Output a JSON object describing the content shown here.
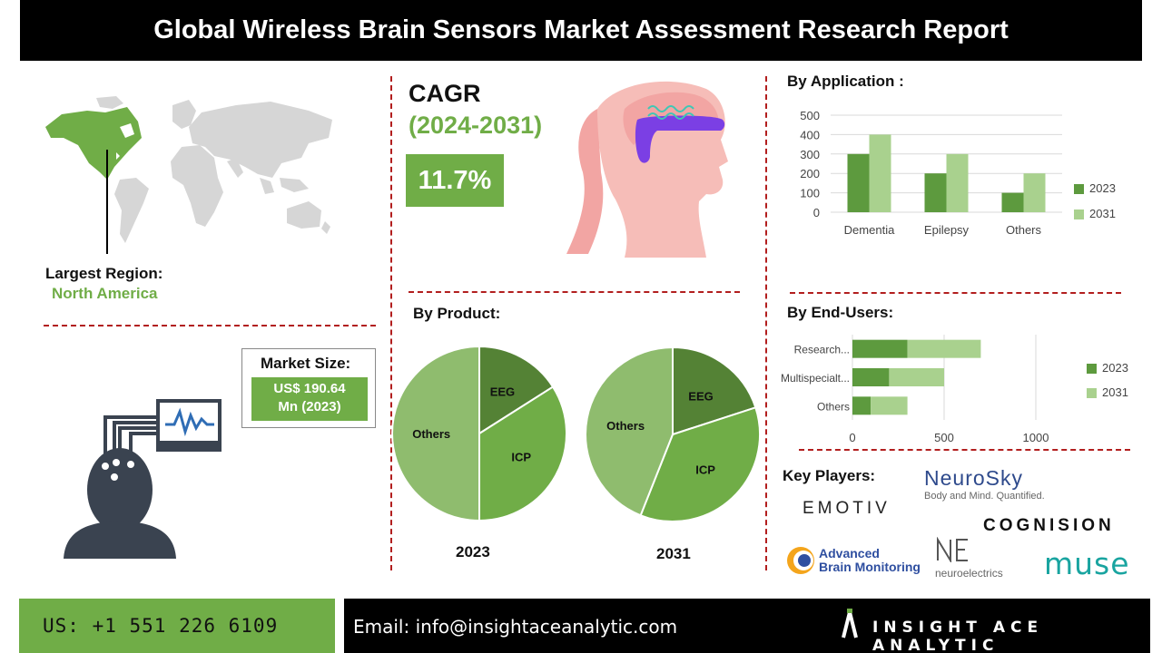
{
  "title": "Global Wireless Brain Sensors Market Assessment Research Report",
  "region": {
    "label": "Largest Region:",
    "value": "North America"
  },
  "cagr": {
    "label": "CAGR",
    "period": "(2024-2031)",
    "value": "11.7%"
  },
  "market_size": {
    "label": "Market Size:",
    "value_line1": "US$ 190.64",
    "value_line2": "Mn (2023)"
  },
  "sections": {
    "application": "By Application :",
    "product": "By Product:",
    "end_users": "By End-Users:",
    "key_players": "Key Players:"
  },
  "key_players": {
    "neurosky": "NeuroSky",
    "neurosky_tag": "Body and Mind. Quantified.",
    "emotiv": "EMOTIV",
    "cognision": "COGNISION",
    "abm_line1": "Advanced",
    "abm_line2": "Brain Monitoring",
    "neuroelectrics": "neuroelectrics",
    "muse": "muse"
  },
  "footer": {
    "phone": "US: +1 551 226 6109",
    "email": "Email: info@insightaceanalytic.com",
    "brand": "INSIGHT ACE ANALYTIC"
  },
  "colors": {
    "series_2023": "#5d9a3e",
    "series_2031": "#a9d18e",
    "accent": "#70ad47",
    "divider": "#b21e1e"
  },
  "chart_data": [
    {
      "type": "bar",
      "categories": [
        "Dementia",
        "Epilepsy",
        "Others"
      ],
      "series": [
        {
          "name": "2023",
          "values": [
            300,
            200,
            100
          ]
        },
        {
          "name": "2031",
          "values": [
            400,
            300,
            200
          ]
        }
      ],
      "yticks": [
        "0",
        "100",
        "200",
        "300",
        "400",
        "500"
      ],
      "ylim": [
        0,
        500
      ],
      "grid": true,
      "legend": "right"
    },
    {
      "type": "pie",
      "caption": "2023",
      "slices": [
        {
          "label": "EEG",
          "value": 16
        },
        {
          "label": "ICP",
          "value": 34
        },
        {
          "label": "Others",
          "value": 50
        }
      ]
    },
    {
      "type": "pie",
      "caption": "2031",
      "slices": [
        {
          "label": "EEG",
          "value": 20
        },
        {
          "label": "ICP",
          "value": 36
        },
        {
          "label": "Others",
          "value": 44
        }
      ]
    },
    {
      "type": "bar",
      "orientation": "horizontal",
      "categories": [
        "Research...",
        "Multispecialt...",
        "Others"
      ],
      "series": [
        {
          "name": "2023",
          "values": [
            300,
            200,
            100
          ]
        },
        {
          "name": "2031",
          "values": [
            400,
            300,
            200
          ]
        }
      ],
      "xticks": [
        "0",
        "500",
        "1000"
      ],
      "xlim": [
        0,
        1000
      ],
      "stacked": true,
      "grid": true,
      "legend": "right"
    }
  ]
}
